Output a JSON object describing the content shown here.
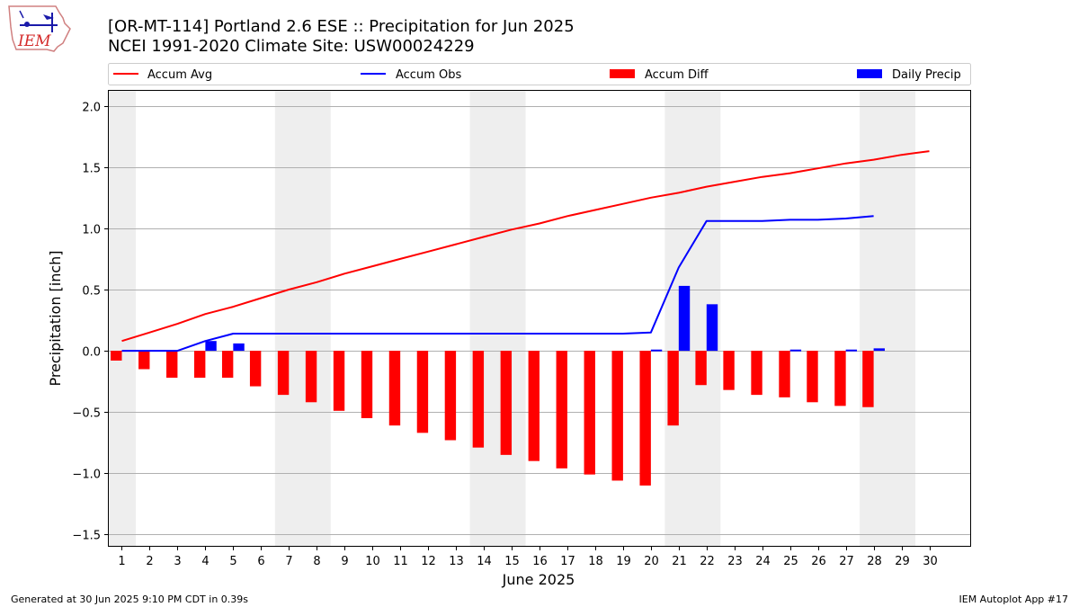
{
  "logo": {
    "text": "IEM"
  },
  "chart_data": {
    "type": "bar",
    "title": "[OR-MT-114] Portland 2.6 ESE :: Precipitation for Jun 2025",
    "subtitle": "NCEI 1991-2020 Climate Site: USW00024229",
    "xlabel": "June 2025",
    "ylabel": "Precipitation [inch]",
    "ylim": [
      -1.6,
      2.13
    ],
    "yticks": [
      -1.5,
      -1.0,
      -0.5,
      0.0,
      0.5,
      1.0,
      1.5,
      2.0
    ],
    "ytick_labels": [
      "−1.5",
      "−1.0",
      "−0.5",
      "0.0",
      "0.5",
      "1.0",
      "1.5",
      "2.0"
    ],
    "xlim": [
      0.5,
      31.5
    ],
    "days": [
      1,
      2,
      3,
      4,
      5,
      6,
      7,
      8,
      9,
      10,
      11,
      12,
      13,
      14,
      15,
      16,
      17,
      18,
      19,
      20,
      21,
      22,
      23,
      24,
      25,
      26,
      27,
      28,
      29,
      30
    ],
    "grid": "horizontal",
    "legend_position": "top",
    "weekend_shading": [
      [
        0.5,
        1.5
      ],
      [
        6.5,
        8.5
      ],
      [
        13.5,
        15.5
      ],
      [
        20.5,
        22.5
      ],
      [
        27.5,
        29.5
      ]
    ],
    "colors": {
      "accum_avg": "#ff0000",
      "accum_obs": "#0000ff",
      "accum_diff": "#ff0000",
      "daily_precip": "#0000ff",
      "weekend": "#eeeeee",
      "grid": "#b0b0b0"
    },
    "series": [
      {
        "name": "Accum Avg",
        "type": "line",
        "x": [
          1,
          2,
          3,
          4,
          5,
          6,
          7,
          8,
          9,
          10,
          11,
          12,
          13,
          14,
          15,
          16,
          17,
          18,
          19,
          20,
          21,
          22,
          23,
          24,
          25,
          26,
          27,
          28,
          29,
          30
        ],
        "values": [
          0.08,
          0.15,
          0.22,
          0.3,
          0.36,
          0.43,
          0.5,
          0.56,
          0.63,
          0.69,
          0.75,
          0.81,
          0.87,
          0.93,
          0.99,
          1.04,
          1.1,
          1.15,
          1.2,
          1.25,
          1.29,
          1.34,
          1.38,
          1.42,
          1.45,
          1.49,
          1.53,
          1.56,
          1.6,
          1.63
        ]
      },
      {
        "name": "Accum Obs",
        "type": "line",
        "x": [
          1,
          2,
          3,
          4,
          5,
          6,
          7,
          8,
          9,
          10,
          11,
          12,
          13,
          14,
          15,
          16,
          17,
          18,
          19,
          20,
          21,
          22,
          23,
          24,
          25,
          26,
          27,
          28
        ],
        "values": [
          0.0,
          0.0,
          0.0,
          0.08,
          0.14,
          0.14,
          0.14,
          0.14,
          0.14,
          0.14,
          0.14,
          0.14,
          0.14,
          0.14,
          0.14,
          0.14,
          0.14,
          0.14,
          0.14,
          0.15,
          0.68,
          1.06,
          1.06,
          1.06,
          1.07,
          1.07,
          1.08,
          1.1
        ]
      },
      {
        "name": "Accum Diff",
        "type": "bar",
        "x": [
          1,
          2,
          3,
          4,
          5,
          6,
          7,
          8,
          9,
          10,
          11,
          12,
          13,
          14,
          15,
          16,
          17,
          18,
          19,
          20,
          21,
          22,
          23,
          24,
          25,
          26,
          27,
          28
        ],
        "values": [
          -0.08,
          -0.15,
          -0.22,
          -0.22,
          -0.22,
          -0.29,
          -0.36,
          -0.42,
          -0.49,
          -0.55,
          -0.61,
          -0.67,
          -0.73,
          -0.79,
          -0.85,
          -0.9,
          -0.96,
          -1.01,
          -1.06,
          -1.1,
          -0.61,
          -0.28,
          -0.32,
          -0.36,
          -0.38,
          -0.42,
          -0.45,
          -0.46
        ]
      },
      {
        "name": "Daily Precip",
        "type": "bar",
        "x": [
          1,
          2,
          3,
          4,
          5,
          6,
          7,
          8,
          9,
          10,
          11,
          12,
          13,
          14,
          15,
          16,
          17,
          18,
          19,
          20,
          21,
          22,
          23,
          24,
          25,
          26,
          27,
          28
        ],
        "values": [
          0,
          0,
          0,
          0.08,
          0.06,
          0,
          0,
          0,
          0,
          0,
          0,
          0,
          0,
          0,
          0,
          0,
          0,
          0,
          0,
          0.01,
          0.53,
          0.38,
          0,
          0,
          0.01,
          0,
          0.01,
          0.02
        ]
      }
    ]
  },
  "footer": {
    "generated": "Generated at 30 Jun 2025 9:10 PM CDT in 0.39s",
    "app": "IEM Autoplot App #17"
  }
}
